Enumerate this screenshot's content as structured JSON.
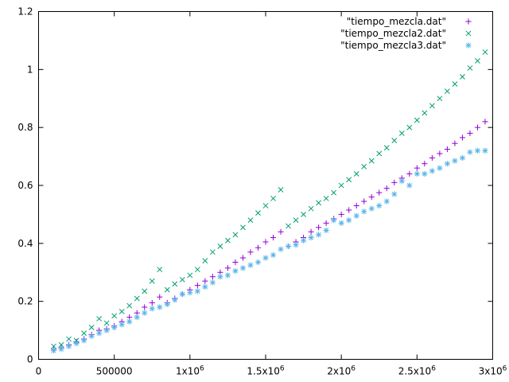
{
  "chart_data": {
    "type": "scatter",
    "title": "",
    "xlabel": "",
    "ylabel": "",
    "xlim": [
      0,
      3000000
    ],
    "ylim": [
      0,
      1.2
    ],
    "x_ticks": [
      {
        "value": 0,
        "label": "0"
      },
      {
        "value": 500000,
        "label": "500000"
      },
      {
        "value": 1000000,
        "label": "1x10",
        "exp": "6"
      },
      {
        "value": 1500000,
        "label": "1.5x10",
        "exp": "6"
      },
      {
        "value": 2000000,
        "label": "2x10",
        "exp": "6"
      },
      {
        "value": 2500000,
        "label": "2.5x10",
        "exp": "6"
      },
      {
        "value": 3000000,
        "label": "3x10",
        "exp": "6"
      }
    ],
    "y_ticks": [
      {
        "value": 0,
        "label": "0"
      },
      {
        "value": 0.2,
        "label": "0.2"
      },
      {
        "value": 0.4,
        "label": "0.4"
      },
      {
        "value": 0.6,
        "label": "0.6"
      },
      {
        "value": 0.8,
        "label": "0.8"
      },
      {
        "value": 1.0,
        "label": "1"
      },
      {
        "value": 1.2,
        "label": "1.2"
      }
    ],
    "legend_position": "top-right",
    "grid": false,
    "series": [
      {
        "name": "\"tiempo_mezcla.dat\"",
        "marker": "plus",
        "color": "#9400d3",
        "points": [
          [
            100000,
            0.035
          ],
          [
            150000,
            0.04
          ],
          [
            200000,
            0.05
          ],
          [
            250000,
            0.06
          ],
          [
            300000,
            0.07
          ],
          [
            350000,
            0.085
          ],
          [
            400000,
            0.1
          ],
          [
            450000,
            0.105
          ],
          [
            500000,
            0.115
          ],
          [
            550000,
            0.13
          ],
          [
            600000,
            0.145
          ],
          [
            650000,
            0.16
          ],
          [
            700000,
            0.18
          ],
          [
            750000,
            0.195
          ],
          [
            800000,
            0.215
          ],
          [
            850000,
            0.195
          ],
          [
            900000,
            0.21
          ],
          [
            950000,
            0.225
          ],
          [
            1000000,
            0.24
          ],
          [
            1050000,
            0.255
          ],
          [
            1100000,
            0.27
          ],
          [
            1150000,
            0.285
          ],
          [
            1200000,
            0.3
          ],
          [
            1250000,
            0.315
          ],
          [
            1300000,
            0.335
          ],
          [
            1350000,
            0.35
          ],
          [
            1400000,
            0.37
          ],
          [
            1450000,
            0.385
          ],
          [
            1500000,
            0.405
          ],
          [
            1550000,
            0.42
          ],
          [
            1600000,
            0.44
          ],
          [
            1650000,
            0.39
          ],
          [
            1700000,
            0.405
          ],
          [
            1750000,
            0.42
          ],
          [
            1800000,
            0.44
          ],
          [
            1850000,
            0.455
          ],
          [
            1900000,
            0.47
          ],
          [
            1950000,
            0.485
          ],
          [
            2000000,
            0.5
          ],
          [
            2050000,
            0.515
          ],
          [
            2100000,
            0.53
          ],
          [
            2150000,
            0.545
          ],
          [
            2200000,
            0.56
          ],
          [
            2250000,
            0.575
          ],
          [
            2300000,
            0.59
          ],
          [
            2350000,
            0.61
          ],
          [
            2400000,
            0.625
          ],
          [
            2450000,
            0.64
          ],
          [
            2500000,
            0.66
          ],
          [
            2550000,
            0.675
          ],
          [
            2600000,
            0.695
          ],
          [
            2650000,
            0.71
          ],
          [
            2700000,
            0.725
          ],
          [
            2750000,
            0.745
          ],
          [
            2800000,
            0.765
          ],
          [
            2850000,
            0.78
          ],
          [
            2900000,
            0.8
          ],
          [
            2950000,
            0.82
          ]
        ]
      },
      {
        "name": "\"tiempo_mezcla2.dat\"",
        "marker": "cross",
        "color": "#009e73",
        "points": [
          [
            100000,
            0.045
          ],
          [
            150000,
            0.05
          ],
          [
            200000,
            0.07
          ],
          [
            250000,
            0.065
          ],
          [
            300000,
            0.09
          ],
          [
            350000,
            0.11
          ],
          [
            400000,
            0.14
          ],
          [
            450000,
            0.125
          ],
          [
            500000,
            0.15
          ],
          [
            550000,
            0.165
          ],
          [
            600000,
            0.185
          ],
          [
            650000,
            0.21
          ],
          [
            700000,
            0.235
          ],
          [
            750000,
            0.27
          ],
          [
            800000,
            0.31
          ],
          [
            850000,
            0.24
          ],
          [
            900000,
            0.26
          ],
          [
            950000,
            0.275
          ],
          [
            1000000,
            0.29
          ],
          [
            1050000,
            0.31
          ],
          [
            1100000,
            0.34
          ],
          [
            1150000,
            0.37
          ],
          [
            1200000,
            0.39
          ],
          [
            1250000,
            0.41
          ],
          [
            1300000,
            0.43
          ],
          [
            1350000,
            0.455
          ],
          [
            1400000,
            0.48
          ],
          [
            1450000,
            0.505
          ],
          [
            1500000,
            0.53
          ],
          [
            1550000,
            0.555
          ],
          [
            1600000,
            0.585
          ],
          [
            1650000,
            0.46
          ],
          [
            1700000,
            0.48
          ],
          [
            1750000,
            0.5
          ],
          [
            1800000,
            0.52
          ],
          [
            1850000,
            0.54
          ],
          [
            1900000,
            0.555
          ],
          [
            1950000,
            0.575
          ],
          [
            2000000,
            0.6
          ],
          [
            2050000,
            0.62
          ],
          [
            2100000,
            0.64
          ],
          [
            2150000,
            0.665
          ],
          [
            2200000,
            0.685
          ],
          [
            2250000,
            0.71
          ],
          [
            2300000,
            0.73
          ],
          [
            2350000,
            0.755
          ],
          [
            2400000,
            0.78
          ],
          [
            2450000,
            0.8
          ],
          [
            2500000,
            0.825
          ],
          [
            2550000,
            0.85
          ],
          [
            2600000,
            0.875
          ],
          [
            2650000,
            0.9
          ],
          [
            2700000,
            0.925
          ],
          [
            2750000,
            0.95
          ],
          [
            2800000,
            0.975
          ],
          [
            2850000,
            1.005
          ],
          [
            2900000,
            1.03
          ],
          [
            2950000,
            1.06
          ]
        ]
      },
      {
        "name": "\"tiempo_mezcla3.dat\"",
        "marker": "star",
        "color": "#56b4e9",
        "points": [
          [
            100000,
            0.03
          ],
          [
            150000,
            0.035
          ],
          [
            200000,
            0.045
          ],
          [
            250000,
            0.055
          ],
          [
            300000,
            0.065
          ],
          [
            350000,
            0.08
          ],
          [
            400000,
            0.09
          ],
          [
            450000,
            0.1
          ],
          [
            500000,
            0.11
          ],
          [
            550000,
            0.12
          ],
          [
            600000,
            0.13
          ],
          [
            650000,
            0.145
          ],
          [
            700000,
            0.16
          ],
          [
            750000,
            0.175
          ],
          [
            800000,
            0.18
          ],
          [
            850000,
            0.19
          ],
          [
            900000,
            0.205
          ],
          [
            950000,
            0.225
          ],
          [
            1000000,
            0.23
          ],
          [
            1050000,
            0.235
          ],
          [
            1100000,
            0.25
          ],
          [
            1150000,
            0.265
          ],
          [
            1200000,
            0.285
          ],
          [
            1250000,
            0.29
          ],
          [
            1300000,
            0.305
          ],
          [
            1350000,
            0.315
          ],
          [
            1400000,
            0.325
          ],
          [
            1450000,
            0.335
          ],
          [
            1500000,
            0.35
          ],
          [
            1550000,
            0.36
          ],
          [
            1600000,
            0.38
          ],
          [
            1650000,
            0.39
          ],
          [
            1700000,
            0.395
          ],
          [
            1750000,
            0.41
          ],
          [
            1800000,
            0.42
          ],
          [
            1850000,
            0.43
          ],
          [
            1900000,
            0.445
          ],
          [
            1950000,
            0.48
          ],
          [
            2000000,
            0.47
          ],
          [
            2050000,
            0.48
          ],
          [
            2100000,
            0.495
          ],
          [
            2150000,
            0.51
          ],
          [
            2200000,
            0.52
          ],
          [
            2250000,
            0.53
          ],
          [
            2300000,
            0.545
          ],
          [
            2350000,
            0.57
          ],
          [
            2400000,
            0.615
          ],
          [
            2450000,
            0.6
          ],
          [
            2500000,
            0.64
          ],
          [
            2550000,
            0.64
          ],
          [
            2600000,
            0.65
          ],
          [
            2650000,
            0.66
          ],
          [
            2700000,
            0.675
          ],
          [
            2750000,
            0.685
          ],
          [
            2800000,
            0.695
          ],
          [
            2850000,
            0.715
          ],
          [
            2900000,
            0.72
          ],
          [
            2950000,
            0.72
          ]
        ]
      }
    ]
  }
}
